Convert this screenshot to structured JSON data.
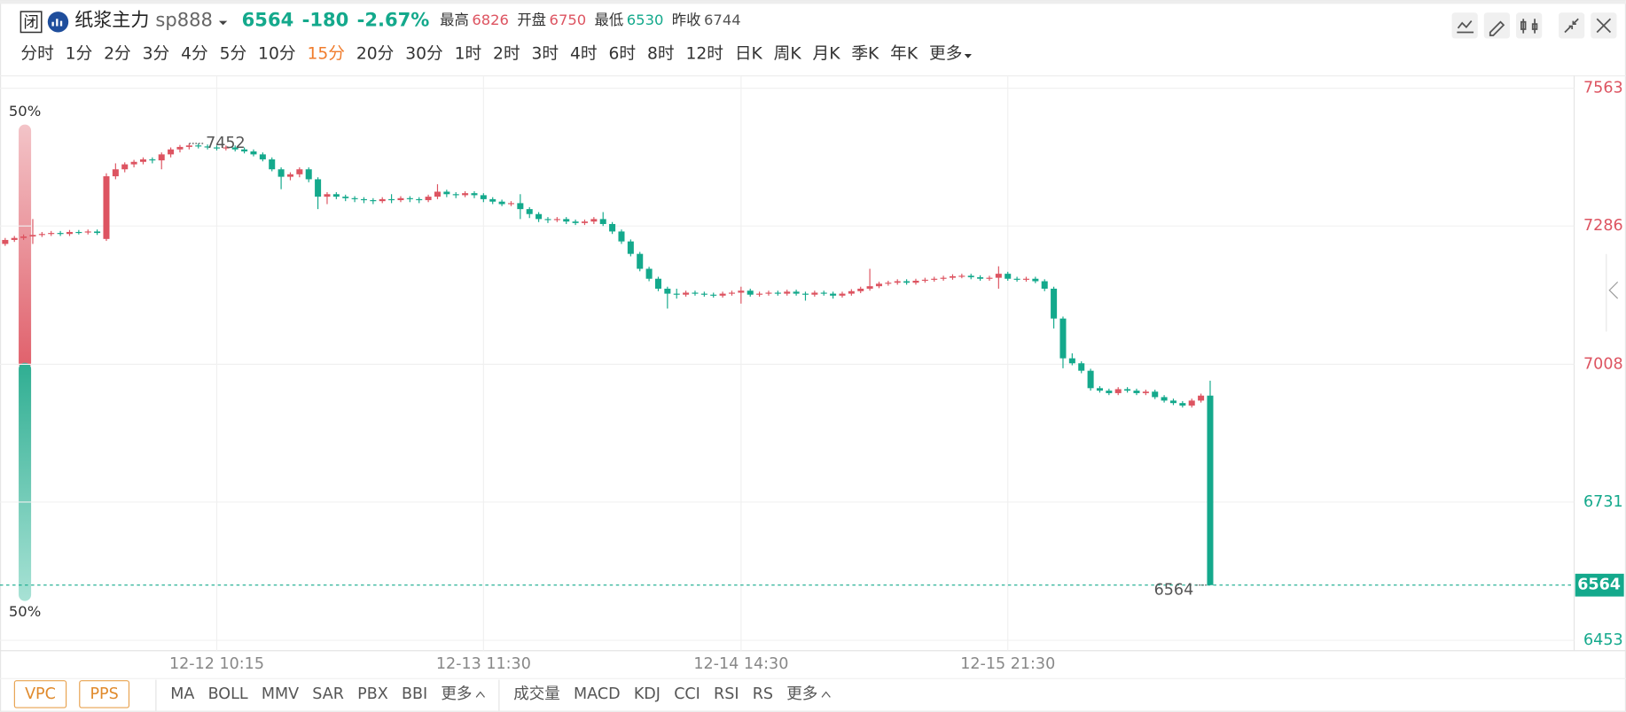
{
  "header": {
    "icon": "闭",
    "name": "纸浆主力",
    "code": "sp888",
    "change": -180,
    "change_pct": "-2.67%",
    "stats": [
      {
        "label": "最高",
        "value": 6826
      },
      {
        "label": "开盘",
        "value": 6750
      },
      {
        "label": "最低",
        "value": 6530
      },
      {
        "label": "昨收",
        "value": 6744
      }
    ]
  },
  "intervals": [
    {
      "label": "分时"
    },
    {
      "label": "1分"
    },
    {
      "label": "2分"
    },
    {
      "label": "3分"
    },
    {
      "label": "4分"
    },
    {
      "label": "5分"
    },
    {
      "label": "10分"
    },
    {
      "label": "15分",
      "active": true
    },
    {
      "label": "20分"
    },
    {
      "label": "30分"
    },
    {
      "label": "1时"
    },
    {
      "label": "2时"
    },
    {
      "label": "3时"
    },
    {
      "label": "4时"
    },
    {
      "label": "6时"
    },
    {
      "label": "8时"
    },
    {
      "label": "12时"
    },
    {
      "label": "日K"
    },
    {
      "label": "周K"
    },
    {
      "label": "月K"
    },
    {
      "label": "季K"
    },
    {
      "label": "年K"
    },
    {
      "label": "更多"
    }
  ],
  "chart_data": {
    "type": "candlestick",
    "grid": true,
    "colors": {
      "up": "#dd5461",
      "down": "#14a98c"
    },
    "ylim": [
      6453,
      7563
    ],
    "yticks": [
      7563,
      7286,
      7008,
      6731,
      6453
    ],
    "last_price": 6564,
    "max_marker": 7452,
    "ratio_labels": [
      "50%",
      "50%"
    ],
    "categories": [
      null,
      null,
      null,
      null,
      null,
      null,
      null,
      null,
      null,
      null,
      null,
      null,
      null,
      null,
      null,
      null,
      null,
      null,
      null,
      null,
      null,
      null,
      null,
      "12-12 10:15",
      null,
      null,
      null,
      null,
      null,
      null,
      null,
      null,
      null,
      null,
      null,
      null,
      null,
      null,
      null,
      null,
      null,
      null,
      null,
      null,
      null,
      null,
      null,
      null,
      null,
      null,
      null,
      null,
      "12-13 11:30",
      null,
      null,
      null,
      null,
      null,
      null,
      null,
      null,
      null,
      null,
      null,
      null,
      null,
      null,
      null,
      null,
      null,
      null,
      null,
      null,
      null,
      null,
      null,
      null,
      null,
      null,
      null,
      "12-14 14:30",
      null,
      null,
      null,
      null,
      null,
      null,
      null,
      null,
      null,
      null,
      null,
      null,
      null,
      null,
      null,
      null,
      null,
      null,
      null,
      null,
      null,
      null,
      null,
      null,
      null,
      null,
      null,
      null,
      "12-15 21:30",
      null,
      null,
      null,
      null,
      null,
      null,
      null,
      null,
      null,
      null,
      null,
      null,
      null,
      null,
      null,
      null,
      null,
      null,
      null,
      null,
      null,
      null
    ],
    "candles": [
      [
        7250,
        7262,
        7246,
        7258
      ],
      [
        7258,
        7266,
        7254,
        7262
      ],
      [
        7262,
        7269,
        7258,
        7265
      ],
      [
        7265,
        7300,
        7250,
        7268
      ],
      [
        7268,
        7274,
        7264,
        7270
      ],
      [
        7270,
        7276,
        7266,
        7272
      ],
      [
        7272,
        7276,
        7266,
        7270
      ],
      [
        7270,
        7278,
        7266,
        7274
      ],
      [
        7274,
        7278,
        7269,
        7273
      ],
      [
        7273,
        7279,
        7269,
        7275
      ],
      [
        7275,
        7279,
        7268,
        7272
      ],
      [
        7260,
        7392,
        7256,
        7386
      ],
      [
        7386,
        7412,
        7380,
        7400
      ],
      [
        7400,
        7414,
        7394,
        7410
      ],
      [
        7410,
        7419,
        7404,
        7415
      ],
      [
        7415,
        7424,
        7410,
        7420
      ],
      [
        7420,
        7424,
        7412,
        7418
      ],
      [
        7418,
        7434,
        7400,
        7430
      ],
      [
        7430,
        7444,
        7424,
        7440
      ],
      [
        7440,
        7449,
        7434,
        7445
      ],
      [
        7445,
        7452,
        7440,
        7448
      ],
      [
        7448,
        7452,
        7442,
        7446
      ],
      [
        7446,
        7450,
        7440,
        7444
      ],
      [
        7444,
        7448,
        7438,
        7442
      ],
      [
        7442,
        7448,
        7438,
        7444
      ],
      [
        7444,
        7448,
        7436,
        7440
      ],
      [
        7440,
        7444,
        7432,
        7436
      ],
      [
        7436,
        7440,
        7426,
        7430
      ],
      [
        7430,
        7434,
        7416,
        7420
      ],
      [
        7420,
        7424,
        7396,
        7400
      ],
      [
        7400,
        7404,
        7360,
        7385
      ],
      [
        7385,
        7394,
        7378,
        7390
      ],
      [
        7390,
        7404,
        7384,
        7400
      ],
      [
        7400,
        7404,
        7374,
        7380
      ],
      [
        7380,
        7384,
        7320,
        7345
      ],
      [
        7345,
        7354,
        7330,
        7350
      ],
      [
        7350,
        7354,
        7340,
        7345
      ],
      [
        7345,
        7349,
        7336,
        7342
      ],
      [
        7342,
        7346,
        7334,
        7340
      ],
      [
        7340,
        7344,
        7332,
        7338
      ],
      [
        7338,
        7342,
        7330,
        7336
      ],
      [
        7336,
        7344,
        7332,
        7340
      ],
      [
        7340,
        7350,
        7332,
        7338
      ],
      [
        7338,
        7346,
        7334,
        7342
      ],
      [
        7342,
        7346,
        7334,
        7340
      ],
      [
        7340,
        7344,
        7332,
        7338
      ],
      [
        7338,
        7349,
        7334,
        7345
      ],
      [
        7345,
        7370,
        7340,
        7355
      ],
      [
        7355,
        7359,
        7344,
        7350
      ],
      [
        7350,
        7354,
        7342,
        7348
      ],
      [
        7348,
        7356,
        7344,
        7352
      ],
      [
        7352,
        7356,
        7342,
        7348
      ],
      [
        7348,
        7352,
        7334,
        7340
      ],
      [
        7340,
        7344,
        7330,
        7335
      ],
      [
        7335,
        7339,
        7326,
        7330
      ],
      [
        7330,
        7336,
        7326,
        7332
      ],
      [
        7332,
        7350,
        7300,
        7320
      ],
      [
        7320,
        7324,
        7302,
        7310
      ],
      [
        7310,
        7314,
        7294,
        7300
      ],
      [
        7300,
        7304,
        7292,
        7298
      ],
      [
        7298,
        7304,
        7294,
        7300
      ],
      [
        7300,
        7304,
        7290,
        7295
      ],
      [
        7295,
        7299,
        7288,
        7292
      ],
      [
        7292,
        7299,
        7288,
        7295
      ],
      [
        7295,
        7304,
        7290,
        7300
      ],
      [
        7300,
        7314,
        7286,
        7290
      ],
      [
        7290,
        7294,
        7270,
        7275
      ],
      [
        7275,
        7279,
        7250,
        7255
      ],
      [
        7255,
        7259,
        7225,
        7230
      ],
      [
        7230,
        7234,
        7195,
        7200
      ],
      [
        7200,
        7204,
        7175,
        7180
      ],
      [
        7180,
        7184,
        7155,
        7160
      ],
      [
        7160,
        7164,
        7120,
        7150
      ],
      [
        7150,
        7160,
        7140,
        7148
      ],
      [
        7148,
        7156,
        7144,
        7152
      ],
      [
        7152,
        7156,
        7146,
        7150
      ],
      [
        7150,
        7154,
        7144,
        7148
      ],
      [
        7148,
        7152,
        7142,
        7146
      ],
      [
        7146,
        7154,
        7142,
        7150
      ],
      [
        7150,
        7156,
        7146,
        7152
      ],
      [
        7152,
        7164,
        7130,
        7156
      ],
      [
        7156,
        7160,
        7144,
        7148
      ],
      [
        7148,
        7154,
        7144,
        7150
      ],
      [
        7150,
        7156,
        7146,
        7152
      ],
      [
        7152,
        7156,
        7146,
        7150
      ],
      [
        7150,
        7158,
        7146,
        7154
      ],
      [
        7154,
        7158,
        7146,
        7150
      ],
      [
        7150,
        7154,
        7136,
        7148
      ],
      [
        7148,
        7156,
        7144,
        7152
      ],
      [
        7152,
        7156,
        7146,
        7150
      ],
      [
        7150,
        7154,
        7140,
        7146
      ],
      [
        7146,
        7154,
        7142,
        7150
      ],
      [
        7150,
        7159,
        7146,
        7155
      ],
      [
        7155,
        7164,
        7151,
        7160
      ],
      [
        7160,
        7200,
        7156,
        7165
      ],
      [
        7165,
        7174,
        7161,
        7170
      ],
      [
        7170,
        7176,
        7166,
        7172
      ],
      [
        7172,
        7179,
        7168,
        7175
      ],
      [
        7175,
        7179,
        7168,
        7172
      ],
      [
        7172,
        7180,
        7168,
        7176
      ],
      [
        7176,
        7182,
        7172,
        7178
      ],
      [
        7178,
        7184,
        7174,
        7180
      ],
      [
        7180,
        7186,
        7176,
        7182
      ],
      [
        7182,
        7189,
        7178,
        7185
      ],
      [
        7185,
        7190,
        7181,
        7186
      ],
      [
        7186,
        7190,
        7179,
        7183
      ],
      [
        7183,
        7187,
        7176,
        7180
      ],
      [
        7180,
        7186,
        7176,
        7182
      ],
      [
        7182,
        7205,
        7160,
        7190
      ],
      [
        7190,
        7194,
        7176,
        7180
      ],
      [
        7180,
        7184,
        7174,
        7178
      ],
      [
        7178,
        7184,
        7174,
        7180
      ],
      [
        7180,
        7184,
        7171,
        7175
      ],
      [
        7175,
        7179,
        7155,
        7160
      ],
      [
        7160,
        7164,
        7080,
        7100
      ],
      [
        7100,
        7104,
        7000,
        7020
      ],
      [
        7020,
        7030,
        7006,
        7010
      ],
      [
        7010,
        7014,
        6990,
        6995
      ],
      [
        6995,
        6999,
        6955,
        6960
      ],
      [
        6960,
        6964,
        6951,
        6955
      ],
      [
        6955,
        6959,
        6946,
        6950
      ],
      [
        6950,
        6962,
        6946,
        6958
      ],
      [
        6958,
        6962,
        6951,
        6955
      ],
      [
        6955,
        6959,
        6946,
        6950
      ],
      [
        6950,
        6957,
        6946,
        6953
      ],
      [
        6953,
        6957,
        6938,
        6942
      ],
      [
        6942,
        6946,
        6931,
        6935
      ],
      [
        6935,
        6939,
        6926,
        6930
      ],
      [
        6930,
        6934,
        6921,
        6925
      ],
      [
        6925,
        6939,
        6921,
        6935
      ],
      [
        6935,
        6949,
        6931,
        6945
      ],
      [
        6945,
        6975,
        6564,
        6564
      ]
    ]
  },
  "footer": {
    "overlays": [
      "VPC",
      "PPS"
    ],
    "main_indicators": [
      "MA",
      "BOLL",
      "MMV",
      "SAR",
      "PBX",
      "BBI"
    ],
    "sub_indicators": [
      "成交量",
      "MACD",
      "KDJ",
      "CCI",
      "RSI",
      "RS"
    ],
    "more": "更多"
  }
}
